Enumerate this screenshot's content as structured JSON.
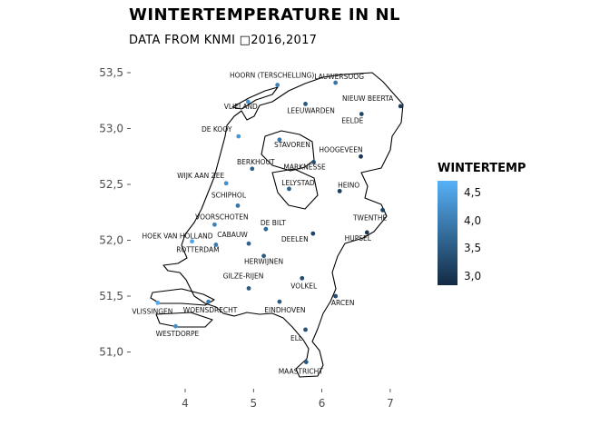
{
  "title": "WINTERTEMPERATURE IN NL",
  "subtitle": "DATA FROM KNMI □2016,2017",
  "legend": {
    "title": "WINTERTEMP",
    "ticks": [
      "4,5",
      "4,0",
      "3,5",
      "3,0"
    ],
    "tick_values": [
      4.5,
      4.0,
      3.5,
      3.0
    ],
    "range": [
      2.8,
      4.8
    ],
    "color_low": "#132B43",
    "color_high": "#56B1F7"
  },
  "chart_data": {
    "type": "scatter",
    "x_ticks": [
      "4",
      "5",
      "6",
      "7"
    ],
    "x_tick_values": [
      4,
      5,
      6,
      7
    ],
    "y_ticks": [
      "53,5",
      "53,0",
      "52,5",
      "52,0",
      "51,5",
      "51,0"
    ],
    "y_tick_values": [
      53.5,
      53.0,
      52.5,
      52.0,
      51.5,
      51.0
    ],
    "xlim": [
      3.3,
      7.3
    ],
    "ylim": [
      50.65,
      53.65
    ],
    "grid": false,
    "stations": [
      {
        "name": "LAUWERSOOG",
        "lon": 6.2,
        "lat": 53.41,
        "temp": 3.9
      },
      {
        "name": "HOORN (TERSCHELLING)",
        "lon": 5.35,
        "lat": 53.39,
        "temp": 4.1
      },
      {
        "name": "VLIELAND",
        "lon": 4.92,
        "lat": 53.24,
        "temp": 4.4
      },
      {
        "name": "LEEUWARDEN",
        "lon": 5.76,
        "lat": 53.22,
        "temp": 3.5
      },
      {
        "name": "NIEUW BEERTA",
        "lon": 7.15,
        "lat": 53.2,
        "temp": 3.1
      },
      {
        "name": "EELDE",
        "lon": 6.58,
        "lat": 53.13,
        "temp": 3.2
      },
      {
        "name": "DE KOOY",
        "lon": 4.78,
        "lat": 52.93,
        "temp": 4.4
      },
      {
        "name": "STAVOREN",
        "lon": 5.38,
        "lat": 52.9,
        "temp": 3.9
      },
      {
        "name": "HOOGEVEEN",
        "lon": 6.57,
        "lat": 52.75,
        "temp": 3.0
      },
      {
        "name": "MARKNESSE",
        "lon": 5.88,
        "lat": 52.7,
        "temp": 3.3
      },
      {
        "name": "BERKHOUT",
        "lon": 4.98,
        "lat": 52.64,
        "temp": 3.6
      },
      {
        "name": "WIJK AAN ZEE",
        "lon": 4.6,
        "lat": 52.51,
        "temp": 4.3
      },
      {
        "name": "LELYSTAD",
        "lon": 5.52,
        "lat": 52.46,
        "temp": 3.6
      },
      {
        "name": "HEINO",
        "lon": 6.26,
        "lat": 52.44,
        "temp": 3.1
      },
      {
        "name": "SCHIPHOL",
        "lon": 4.77,
        "lat": 52.31,
        "temp": 3.9
      },
      {
        "name": "TWENTHE",
        "lon": 6.89,
        "lat": 52.27,
        "temp": 3.1
      },
      {
        "name": "VOORSCHOTEN",
        "lon": 4.43,
        "lat": 52.14,
        "temp": 4.1
      },
      {
        "name": "DE BILT",
        "lon": 5.18,
        "lat": 52.1,
        "temp": 3.7
      },
      {
        "name": "HOEK VAN HOLLAND",
        "lon": 4.1,
        "lat": 51.99,
        "temp": 4.6
      },
      {
        "name": "DEELEN",
        "lon": 5.87,
        "lat": 52.06,
        "temp": 3.2
      },
      {
        "name": "HUPSEL",
        "lon": 6.66,
        "lat": 52.07,
        "temp": 3.0
      },
      {
        "name": "CABAUW",
        "lon": 4.93,
        "lat": 51.97,
        "temp": 3.6
      },
      {
        "name": "ROTTERDAM",
        "lon": 4.45,
        "lat": 51.96,
        "temp": 4.0
      },
      {
        "name": "HERWIJNEN",
        "lon": 5.15,
        "lat": 51.86,
        "temp": 3.5
      },
      {
        "name": "VOLKEL",
        "lon": 5.71,
        "lat": 51.66,
        "temp": 3.3
      },
      {
        "name": "GILZE-RIJEN",
        "lon": 4.93,
        "lat": 51.57,
        "temp": 3.5
      },
      {
        "name": "ARCEN",
        "lon": 6.2,
        "lat": 51.5,
        "temp": 3.3
      },
      {
        "name": "VLISSINGEN",
        "lon": 3.6,
        "lat": 51.44,
        "temp": 4.7
      },
      {
        "name": "WOENSDRECHT",
        "lon": 4.34,
        "lat": 51.45,
        "temp": 4.0
      },
      {
        "name": "EINDHOVEN",
        "lon": 5.38,
        "lat": 51.45,
        "temp": 3.5
      },
      {
        "name": "ELL",
        "lon": 5.76,
        "lat": 51.2,
        "temp": 3.4
      },
      {
        "name": "WESTDORPE",
        "lon": 3.86,
        "lat": 51.23,
        "temp": 4.3
      },
      {
        "name": "MAASTRICHT",
        "lon": 5.77,
        "lat": 50.91,
        "temp": 3.5
      }
    ]
  }
}
